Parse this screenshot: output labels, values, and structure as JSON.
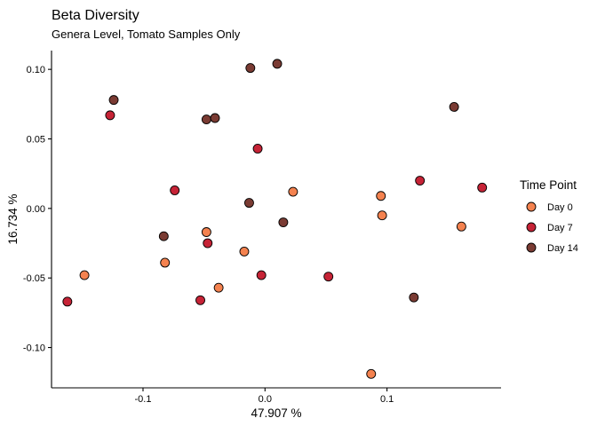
{
  "chart_data": {
    "type": "scatter",
    "title": "Beta Diversity",
    "subtitle": "Genera Level, Tomato Samples Only",
    "xlabel": "47.907 %",
    "ylabel": "16.734 %",
    "xlim": [
      -0.175,
      0.1935
    ],
    "ylim": [
      -0.129,
      0.1135
    ],
    "x_ticks": [
      {
        "value": -0.1,
        "label": "-0.1"
      },
      {
        "value": 0.0,
        "label": "0.0"
      },
      {
        "value": 0.1,
        "label": "0.1"
      }
    ],
    "y_ticks": [
      {
        "value": 0.1,
        "label": "0.10"
      },
      {
        "value": 0.05,
        "label": "0.05"
      },
      {
        "value": 0.0,
        "label": "0.00"
      },
      {
        "value": -0.05,
        "label": "-0.05"
      },
      {
        "value": -0.1,
        "label": "-0.10"
      }
    ],
    "grid": false,
    "legend": {
      "title": "Time Point",
      "position": "right"
    },
    "series": [
      {
        "name": "Day 0",
        "color": "#F4824F",
        "points": [
          {
            "x": -0.148,
            "y": -0.048
          },
          {
            "x": -0.082,
            "y": -0.039
          },
          {
            "x": -0.048,
            "y": -0.017
          },
          {
            "x": -0.038,
            "y": -0.057
          },
          {
            "x": -0.017,
            "y": -0.031
          },
          {
            "x": 0.023,
            "y": 0.012
          },
          {
            "x": 0.095,
            "y": 0.009
          },
          {
            "x": 0.096,
            "y": -0.005
          },
          {
            "x": 0.087,
            "y": -0.119
          },
          {
            "x": 0.161,
            "y": -0.013
          }
        ]
      },
      {
        "name": "Day 7",
        "color": "#C62336",
        "points": [
          {
            "x": -0.162,
            "y": -0.067
          },
          {
            "x": -0.127,
            "y": 0.067
          },
          {
            "x": -0.074,
            "y": 0.013
          },
          {
            "x": -0.053,
            "y": -0.066
          },
          {
            "x": -0.047,
            "y": -0.025
          },
          {
            "x": -0.006,
            "y": 0.043
          },
          {
            "x": -0.003,
            "y": -0.048
          },
          {
            "x": 0.052,
            "y": -0.049
          },
          {
            "x": 0.127,
            "y": 0.02
          },
          {
            "x": 0.178,
            "y": 0.015
          }
        ]
      },
      {
        "name": "Day 14",
        "color": "#7A3B33",
        "points": [
          {
            "x": -0.124,
            "y": 0.078
          },
          {
            "x": -0.083,
            "y": -0.02
          },
          {
            "x": -0.048,
            "y": 0.064
          },
          {
            "x": -0.041,
            "y": 0.065
          },
          {
            "x": -0.012,
            "y": 0.101
          },
          {
            "x": -0.013,
            "y": 0.004
          },
          {
            "x": 0.01,
            "y": 0.104
          },
          {
            "x": 0.015,
            "y": -0.01
          },
          {
            "x": 0.122,
            "y": -0.064
          },
          {
            "x": 0.155,
            "y": 0.073
          }
        ]
      }
    ]
  }
}
